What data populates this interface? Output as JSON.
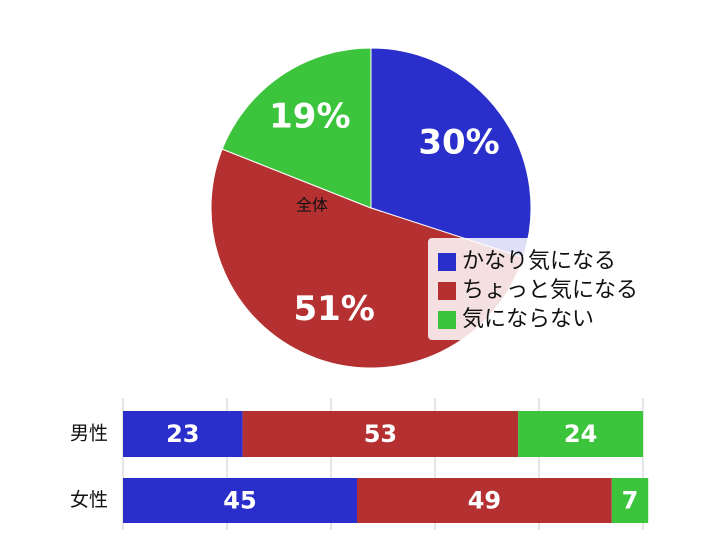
{
  "chart_data": [
    {
      "type": "pie",
      "label": "全体",
      "categories": [
        "かなり気になる",
        "ちょっと気になる",
        "気にならない"
      ],
      "values": [
        30,
        51,
        19
      ],
      "value_labels": [
        "30%",
        "51%",
        "19%"
      ],
      "colors": [
        "#2a2fcc",
        "#b53131",
        "#3cc43c"
      ],
      "legend": "lower right"
    },
    {
      "type": "stacked-barh",
      "categories": [
        "男性",
        "女性"
      ],
      "series": [
        {
          "color": "#2a2fcc",
          "values": [
            23,
            45
          ]
        },
        {
          "color": "#b53131",
          "values": [
            53,
            49
          ]
        },
        {
          "color": "#3cc43c",
          "values": [
            24,
            7
          ]
        }
      ],
      "xlim": [
        0,
        100
      ],
      "xticks": [
        0,
        20,
        40,
        60,
        80,
        100
      ],
      "grid": true
    }
  ]
}
